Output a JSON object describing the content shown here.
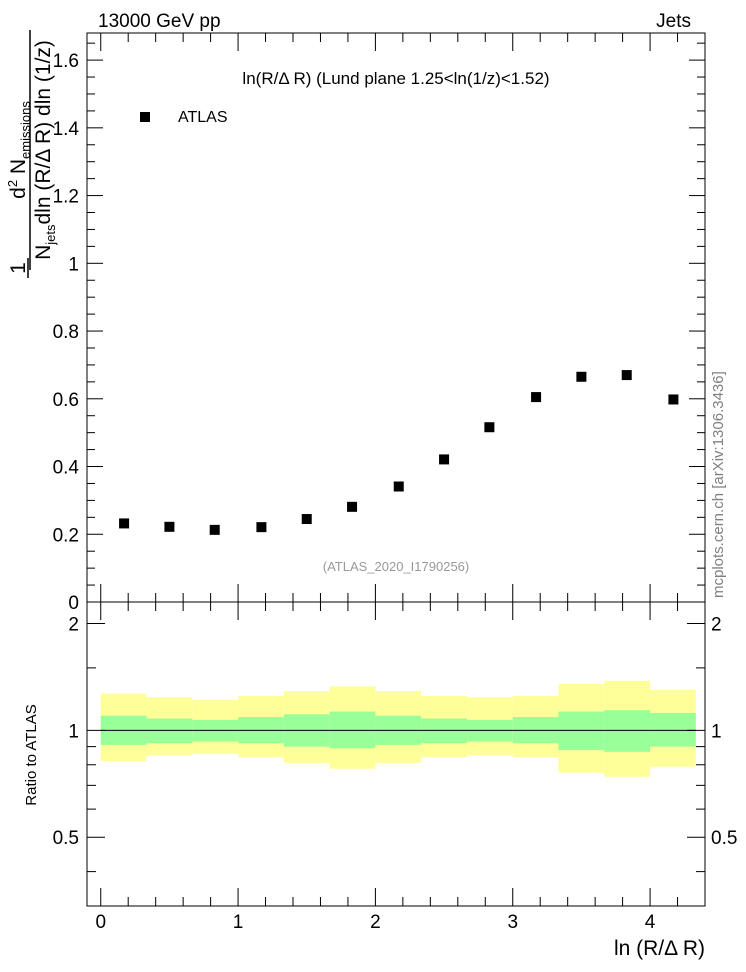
{
  "header": {
    "left": "13000 GeV pp",
    "right": "Jets"
  },
  "watermark": "mcplots.cern.ch [arXiv:1306.3436]",
  "chart_data": [
    {
      "type": "scatter",
      "panel": "main",
      "title": "ln(R/Δ R) (Lund plane 1.25<ln(1/z)<1.52)",
      "analysis_label": "(ATLAS_2020_I1790256)",
      "ylabel": {
        "prefix": "1",
        "num_main": "d",
        "num_sup": "2",
        "num_rest": " N",
        "num_sub": "emissions",
        "den_main": "N",
        "den_sub": "jets",
        "den_rest": "dln (R/Δ R) dln (1/z)"
      },
      "xlim": [
        -0.1,
        4.4
      ],
      "ylim": [
        0,
        1.68
      ],
      "yticks": [
        0,
        0.2,
        0.4,
        0.6,
        0.8,
        1,
        1.2,
        1.4,
        1.6
      ],
      "ytick_labels": [
        "0",
        "0.2",
        "0.4",
        "0.6",
        "0.8",
        "1",
        "1.2",
        "1.4",
        "1.6"
      ],
      "legend": {
        "position": "top-left",
        "entries": [
          "ATLAS"
        ]
      },
      "series": [
        {
          "name": "ATLAS",
          "color": "#000000",
          "marker": "square",
          "x": [
            0.17,
            0.5,
            0.83,
            1.17,
            1.5,
            1.83,
            2.17,
            2.5,
            2.83,
            3.17,
            3.5,
            3.83,
            4.17
          ],
          "y": [
            0.232,
            0.222,
            0.213,
            0.221,
            0.245,
            0.281,
            0.341,
            0.421,
            0.516,
            0.605,
            0.665,
            0.67,
            0.598
          ]
        }
      ]
    },
    {
      "type": "area",
      "panel": "ratio",
      "ylabel": "Ratio to ATLAS",
      "xlabel": "ln (R/Δ R)",
      "xlim": [
        -0.1,
        4.4
      ],
      "ylim": [
        0.32,
        2.3
      ],
      "yticks": [
        0.5,
        1,
        2
      ],
      "ytick_labels": [
        "0.5",
        "1",
        "2"
      ],
      "xticks": [
        0,
        1,
        2,
        3,
        4
      ],
      "xtick_labels": [
        "0",
        "1",
        "2",
        "3",
        "4"
      ],
      "bin_edges": [
        0,
        0.333,
        0.667,
        1.0,
        1.333,
        1.667,
        2.0,
        2.333,
        2.667,
        3.0,
        3.333,
        3.667,
        4.0,
        4.333
      ],
      "bands": [
        {
          "color": "#ffff99",
          "low": [
            0.82,
            0.85,
            0.86,
            0.84,
            0.81,
            0.78,
            0.81,
            0.84,
            0.85,
            0.84,
            0.76,
            0.74,
            0.79
          ],
          "high": [
            1.27,
            1.24,
            1.22,
            1.25,
            1.29,
            1.33,
            1.29,
            1.25,
            1.24,
            1.25,
            1.35,
            1.38,
            1.3
          ]
        },
        {
          "color": "#99ff99",
          "low": [
            0.91,
            0.92,
            0.93,
            0.92,
            0.9,
            0.89,
            0.91,
            0.92,
            0.93,
            0.92,
            0.88,
            0.87,
            0.9
          ],
          "high": [
            1.1,
            1.08,
            1.07,
            1.09,
            1.11,
            1.13,
            1.1,
            1.08,
            1.07,
            1.09,
            1.13,
            1.14,
            1.12
          ]
        }
      ],
      "reference_line": 1
    }
  ]
}
